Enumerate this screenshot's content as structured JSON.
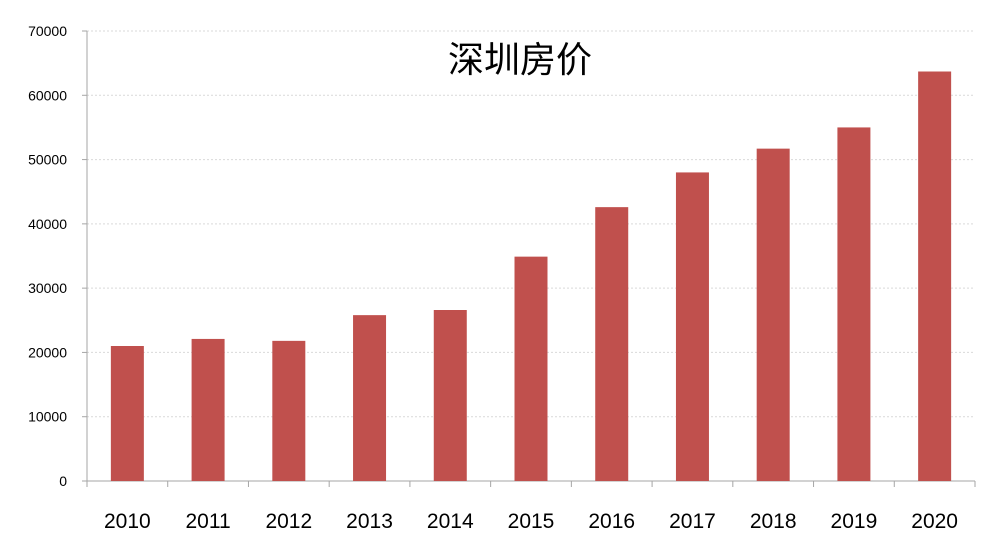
{
  "chart_data": {
    "type": "bar",
    "title": "深圳房价",
    "xlabel": "",
    "ylabel": "",
    "categories": [
      "2010",
      "2011",
      "2012",
      "2013",
      "2014",
      "2015",
      "2016",
      "2017",
      "2018",
      "2019",
      "2020"
    ],
    "values": [
      21000,
      22100,
      21800,
      25800,
      26600,
      34900,
      42600,
      48000,
      51700,
      55000,
      63700
    ],
    "ylim": [
      0,
      70000
    ],
    "yticks": [
      0,
      10000,
      20000,
      30000,
      40000,
      50000,
      60000,
      70000
    ],
    "grid": true,
    "legend": "none",
    "bar_color": "#C0504D",
    "grid_color": "#D9D9D9",
    "axis_color": "#A6A6A6"
  }
}
